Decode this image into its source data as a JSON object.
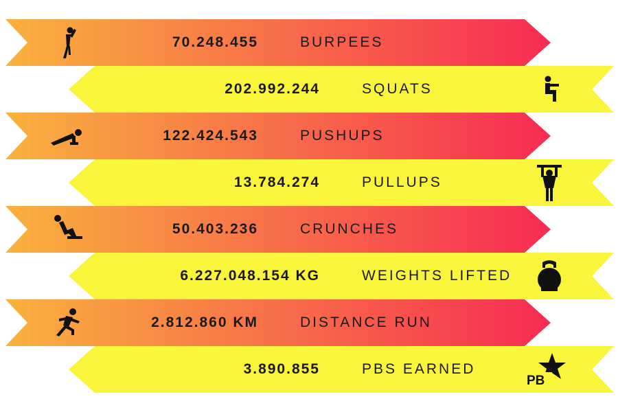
{
  "rows": [
    {
      "value": "70.248.455",
      "label": "BURPEES",
      "icon": "burpee-icon"
    },
    {
      "value": "202.992.244",
      "label": "SQUATS",
      "icon": "squat-icon"
    },
    {
      "value": "122.424.543",
      "label": "PUSHUPS",
      "icon": "pushup-icon"
    },
    {
      "value": "13.784.274",
      "label": "PULLUPS",
      "icon": "pullup-icon"
    },
    {
      "value": "50.403.236",
      "label": "CRUNCHES",
      "icon": "crunch-icon"
    },
    {
      "value": "6.227.048.154 KG",
      "label": "WEIGHTS LIFTED",
      "icon": "kettlebell-icon"
    },
    {
      "value": "2.812.860 KM",
      "label": "DISTANCE RUN",
      "icon": "runner-icon"
    },
    {
      "value": "3.890.855",
      "label": "PBS EARNED",
      "icon": "pb-star-icon",
      "icon_text": "PB"
    }
  ],
  "colors": {
    "gradient_start": "#f9b13e",
    "gradient_end": "#f72c53",
    "yellow": "#f9f53a",
    "ink": "#111111"
  }
}
